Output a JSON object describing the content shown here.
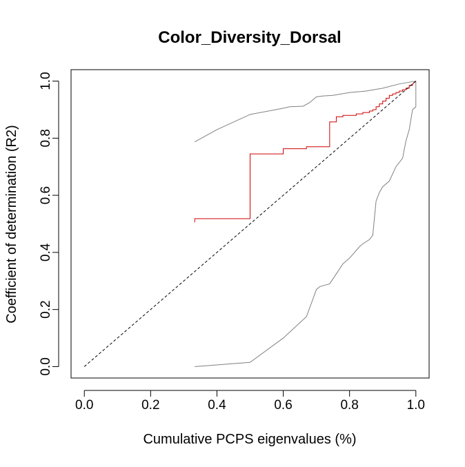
{
  "chart_data": {
    "type": "line",
    "title": "Color_Diversity_Dorsal",
    "xlabel": "Cumulative PCPS eigenvalues (%)",
    "ylabel": "Coefficient of determination (R2)",
    "xlim": [
      -0.04,
      1.04
    ],
    "ylim": [
      -0.04,
      1.04
    ],
    "x_ticks": [
      0.0,
      0.2,
      0.4,
      0.6,
      0.8,
      1.0
    ],
    "x_tick_labels": [
      "0.0",
      "0.2",
      "0.4",
      "0.6",
      "0.8",
      "1.0"
    ],
    "y_ticks": [
      0.0,
      0.2,
      0.4,
      0.6,
      0.8,
      1.0
    ],
    "y_tick_labels": [
      "0.0",
      "0.2",
      "0.4",
      "0.6",
      "0.8",
      "1.0"
    ],
    "grid": false,
    "legend": "none",
    "series": [
      {
        "role": "upper-envelope",
        "color": "#808080",
        "style": "solid",
        "x": [
          0.333,
          0.4,
          0.5,
          0.6,
          0.62,
          0.66,
          0.68,
          0.7,
          0.72,
          0.75,
          0.8,
          0.85,
          0.9,
          0.95,
          1.0
        ],
        "y": [
          0.787,
          0.83,
          0.883,
          0.905,
          0.91,
          0.912,
          0.925,
          0.945,
          0.948,
          0.95,
          0.96,
          0.965,
          0.975,
          0.99,
          1.0
        ]
      },
      {
        "role": "lower-envelope",
        "color": "#808080",
        "style": "solid",
        "x": [
          0.333,
          0.5,
          0.6,
          0.67,
          0.7,
          0.71,
          0.74,
          0.78,
          0.8,
          0.83,
          0.84,
          0.86,
          0.87,
          0.88,
          0.89,
          0.9,
          0.92,
          0.94,
          0.96,
          0.97,
          0.98,
          0.99,
          1.0
        ],
        "y": [
          0.0,
          0.015,
          0.1,
          0.175,
          0.27,
          0.28,
          0.29,
          0.36,
          0.38,
          0.42,
          0.43,
          0.445,
          0.46,
          0.58,
          0.61,
          0.63,
          0.65,
          0.7,
          0.73,
          0.79,
          0.83,
          0.9,
          0.91
        ]
      },
      {
        "role": "lower-envelope-end",
        "color": "#808080",
        "style": "solid",
        "x": [
          1.0,
          1.0
        ],
        "y": [
          0.91,
          1.0
        ]
      },
      {
        "role": "observed",
        "color": "#cc0000",
        "style": "step",
        "x": [
          0.333,
          0.333,
          0.5,
          0.5,
          0.6,
          0.6,
          0.67,
          0.67,
          0.74,
          0.74,
          0.76,
          0.76,
          0.78,
          0.78,
          0.82,
          0.82,
          0.84,
          0.84,
          0.86,
          0.86,
          0.87,
          0.87,
          0.88,
          0.88,
          0.89,
          0.89,
          0.9,
          0.9,
          0.91,
          0.91,
          0.92,
          0.92,
          0.93,
          0.93,
          0.94,
          0.94,
          0.95,
          0.95,
          0.96,
          0.96,
          0.97,
          0.97,
          0.98,
          0.98,
          0.99,
          0.99,
          1.0
        ],
        "y": [
          0.505,
          0.518,
          0.518,
          0.745,
          0.745,
          0.763,
          0.763,
          0.77,
          0.77,
          0.857,
          0.857,
          0.875,
          0.875,
          0.88,
          0.88,
          0.885,
          0.885,
          0.89,
          0.89,
          0.895,
          0.895,
          0.9,
          0.9,
          0.91,
          0.91,
          0.92,
          0.92,
          0.93,
          0.93,
          0.94,
          0.94,
          0.95,
          0.95,
          0.955,
          0.955,
          0.96,
          0.96,
          0.965,
          0.965,
          0.97,
          0.97,
          0.975,
          0.975,
          0.985,
          0.985,
          0.99,
          1.0
        ]
      },
      {
        "role": "reference-diagonal",
        "color": "#000000",
        "style": "dashed",
        "x": [
          0.0,
          1.0
        ],
        "y": [
          0.0,
          1.0
        ]
      }
    ]
  }
}
